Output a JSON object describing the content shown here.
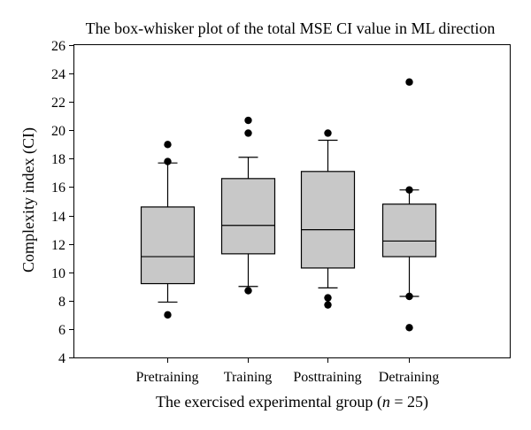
{
  "chart_data": {
    "type": "box",
    "title": "The box-whisker plot of the total MSE CI value in ML direction",
    "xlabel": {
      "prefix": "The exercised experimental group (",
      "italic": "n",
      "suffix": " = 25)"
    },
    "ylabel": "Complexity index (CI)",
    "ylim": [
      4,
      26
    ],
    "yticks": [
      4,
      6,
      8,
      10,
      12,
      14,
      16,
      18,
      20,
      22,
      24,
      26
    ],
    "categories": [
      "Pretraining",
      "Training",
      "Posttraining",
      "Detraining"
    ],
    "boxes": [
      {
        "category": "Pretraining",
        "whisker_low": 7.9,
        "q1": 9.2,
        "median": 11.1,
        "q3": 14.6,
        "whisker_high": 17.7,
        "outliers": [
          7.0,
          17.8,
          19.0
        ]
      },
      {
        "category": "Training",
        "whisker_low": 9.0,
        "q1": 11.3,
        "median": 13.3,
        "q3": 16.6,
        "whisker_high": 18.1,
        "outliers": [
          8.7,
          19.8,
          20.7
        ]
      },
      {
        "category": "Posttraining",
        "whisker_low": 8.9,
        "q1": 10.3,
        "median": 13.0,
        "q3": 17.1,
        "whisker_high": 19.3,
        "outliers": [
          7.7,
          8.2,
          19.8
        ]
      },
      {
        "category": "Detraining",
        "whisker_low": 8.3,
        "q1": 11.1,
        "median": 12.2,
        "q3": 14.8,
        "whisker_high": 15.8,
        "outliers": [
          6.1,
          8.3,
          15.8,
          23.4
        ]
      }
    ],
    "box_fill": "#c8c8c8",
    "line_color": "#000000",
    "grid": false,
    "legend": "none"
  }
}
